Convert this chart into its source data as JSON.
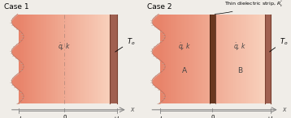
{
  "fig_width": 3.58,
  "fig_height": 1.46,
  "dpi": 100,
  "bg_color": "#f0ede8",
  "wall_color_left": "#e8846a",
  "wall_color_right": "#f8d0bc",
  "right_bar_color": "#a06050",
  "strip_color": "#6a3820",
  "center_dash_color": "#b08878",
  "axis_color": "#888888",
  "case1_title": "Case 1",
  "case2_title": "Case 2",
  "label_qdot_k": "$\\dot{q}$, k",
  "label_To": "$T_o$",
  "label_A": "A",
  "label_B": "B",
  "label_strip": "Thin dielectric strip, $R_t^{''}$",
  "label_negL": "$-L$",
  "label_0": "0",
  "label_posL": "$+L$",
  "label_x": "x"
}
